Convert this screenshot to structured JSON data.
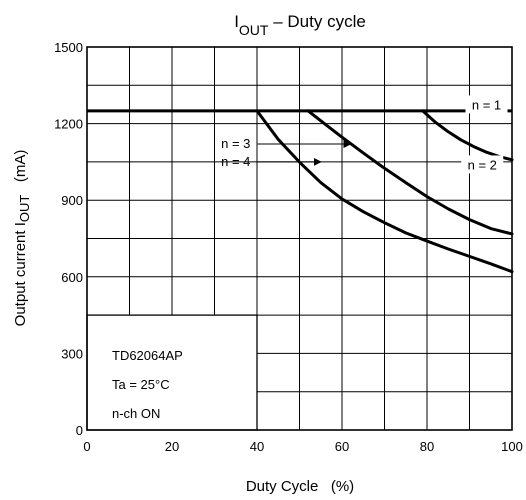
{
  "chart_data": {
    "type": "line",
    "title": {
      "main": "I",
      "sub": "OUT",
      "rest": " – Duty cycle"
    },
    "xlabel": {
      "text": "Duty Cycle",
      "unit": "(%)"
    },
    "ylabel": {
      "text": "Output current  I",
      "sub": "OUT",
      "unit": "(mA)"
    },
    "xlim": [
      0,
      100
    ],
    "ylim": [
      0,
      1500
    ],
    "x_ticks": [
      0,
      20,
      40,
      60,
      80,
      100
    ],
    "y_ticks": [
      0,
      300,
      600,
      900,
      1200,
      1500
    ],
    "grid": true,
    "grid_x_step": 10,
    "grid_y_step": 150,
    "limit_line_y": 1250,
    "series": [
      {
        "name": "n = 1",
        "x": [
          0,
          100
        ],
        "y": [
          1250,
          1250
        ]
      },
      {
        "name": "n = 2",
        "x": [
          0,
          79,
          82,
          85,
          88,
          91,
          94,
          97,
          100
        ],
        "y": [
          1250,
          1250,
          1205,
          1168,
          1136,
          1110,
          1088,
          1071,
          1058
        ]
      },
      {
        "name": "n = 3",
        "x": [
          0,
          52,
          56,
          60,
          65,
          70,
          75,
          80,
          85,
          90,
          95,
          100
        ],
        "y": [
          1250,
          1250,
          1198,
          1147,
          1085,
          1025,
          969,
          914,
          866,
          824,
          789,
          768
        ]
      },
      {
        "name": "n = 4",
        "x": [
          0,
          40,
          45,
          50,
          55,
          60,
          65,
          70,
          75,
          80,
          85,
          90,
          95,
          100
        ],
        "y": [
          1250,
          1250,
          1138,
          1049,
          969,
          905,
          855,
          812,
          772,
          740,
          709,
          680,
          651,
          620
        ]
      }
    ],
    "annotations": [
      {
        "text": "n = 1",
        "series": "n = 1",
        "x": 94,
        "y": 1275
      },
      {
        "text": "n = 2",
        "series": "n = 2",
        "x": 93,
        "y": 1040
      },
      {
        "text": "n = 3",
        "series": "n = 3",
        "x": 35,
        "y": 1120,
        "arrow_to": [
          62,
          1120
        ]
      },
      {
        "text": "n = 4",
        "series": "n = 4",
        "x": 35,
        "y": 1050,
        "arrow_to": [
          55,
          1050
        ]
      }
    ],
    "info_box": [
      "TD62064AP",
      "Ta = 25°C",
      "n-ch ON"
    ]
  }
}
